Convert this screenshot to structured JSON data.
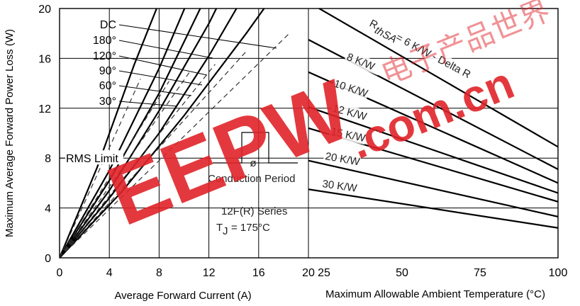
{
  "chart_data": [
    {
      "type": "line",
      "title": "",
      "xlabel": "Average Forward Current (A)",
      "ylabel": "Maximum Average Forward Power Loss (W)",
      "xlim": [
        0,
        20
      ],
      "ylim": [
        0,
        20
      ],
      "x_ticks": [
        "0",
        "4",
        "8",
        "12",
        "16",
        "20"
      ],
      "y_ticks": [
        "0",
        "4",
        "8",
        "12",
        "16",
        "20"
      ],
      "grid": true,
      "series": [
        {
          "name": "DC",
          "label_text": "DC",
          "points": [
            [
              0,
              0
            ],
            [
              5,
              5.3
            ],
            [
              10,
              11.4
            ],
            [
              15,
              18.0
            ],
            [
              18.8,
              23.3
            ]
          ],
          "dashed_rms_x": 18.5
        },
        {
          "name": "180°",
          "label_text": "180°",
          "points": [
            [
              0,
              0
            ],
            [
              4,
              4.8
            ],
            [
              8,
              10.0
            ],
            [
              12,
              16.2
            ],
            [
              14.8,
              21.0
            ]
          ],
          "dashed_rms_x": 15.0
        },
        {
          "name": "120°",
          "label_text": "120°",
          "points": [
            [
              0,
              0
            ],
            [
              4,
              5.4
            ],
            [
              8,
              11.8
            ],
            [
              12,
              18.8
            ],
            [
              13.2,
              21.2
            ]
          ],
          "dashed_rms_x": 12.5
        },
        {
          "name": "90°",
          "label_text": "90°",
          "points": [
            [
              0,
              0
            ],
            [
              4,
              6.2
            ],
            [
              8,
              13.2
            ],
            [
              11.5,
              20.4
            ]
          ],
          "dashed_rms_x": 10.5
        },
        {
          "name": "60°",
          "label_text": "60°",
          "points": [
            [
              0,
              0
            ],
            [
              4,
              7.0
            ],
            [
              8,
              15.2
            ],
            [
              10.3,
              20.6
            ]
          ],
          "dashed_rms_x": 8.8
        },
        {
          "name": "30°",
          "label_text": "30°",
          "points": [
            [
              0,
              0
            ],
            [
              3,
              7.2
            ],
            [
              6,
              15.5
            ],
            [
              8.2,
              21.0
            ]
          ],
          "dashed_rms_x": 6.5
        }
      ],
      "rms_limit_label": "RMS Limit",
      "rms_limit_y": 8,
      "conduction_label": "Conduction Period",
      "phi_symbol": "ø",
      "series_label": "12F(R) Series",
      "tj_label": "T",
      "tj_sub": "J",
      "tj_value": "= 175°C"
    },
    {
      "type": "line",
      "title": "",
      "xlabel": "Maximum Allowable Ambient Temperature (°C)",
      "xlim": [
        20,
        100
      ],
      "ylim": [
        0,
        20
      ],
      "x_ticks": [
        "20",
        "25",
        "50",
        "75",
        "100"
      ],
      "grid": false,
      "series": [
        {
          "name": "6 K/W",
          "label_text": "= 6 K/W - Delta R",
          "rth_prefix": "R",
          "rth_sub": "thSA",
          "points": [
            [
              20,
              20.5
            ],
            [
              100,
              8.9
            ]
          ]
        },
        {
          "name": "8 K/W",
          "label_text": "8 K/W",
          "points": [
            [
              20,
              17.5
            ],
            [
              100,
              7.1
            ]
          ]
        },
        {
          "name": "10 K/W",
          "label_text": "10 K/W",
          "points": [
            [
              20,
              14.9
            ],
            [
              100,
              6.0
            ]
          ]
        },
        {
          "name": "12 K/W",
          "label_text": "12 K/W",
          "points": [
            [
              20,
              12.1
            ],
            [
              100,
              5.2
            ]
          ]
        },
        {
          "name": "15 K/W",
          "label_text": "15 K/W",
          "points": [
            [
              20,
              10.4
            ],
            [
              100,
              4.5
            ]
          ]
        },
        {
          "name": "20 K/W",
          "label_text": "20 K/W",
          "points": [
            [
              20,
              7.8
            ],
            [
              100,
              3.3
            ]
          ]
        },
        {
          "name": "30 K/W",
          "label_text": "30 K/W",
          "points": [
            [
              20,
              5.5
            ],
            [
              100,
              2.4
            ]
          ]
        }
      ]
    }
  ],
  "watermark": {
    "logo_text": "EEPW",
    "domain_text": ".com.cn",
    "cjk_text": "电子产品世界",
    "color": "#e0242a"
  }
}
